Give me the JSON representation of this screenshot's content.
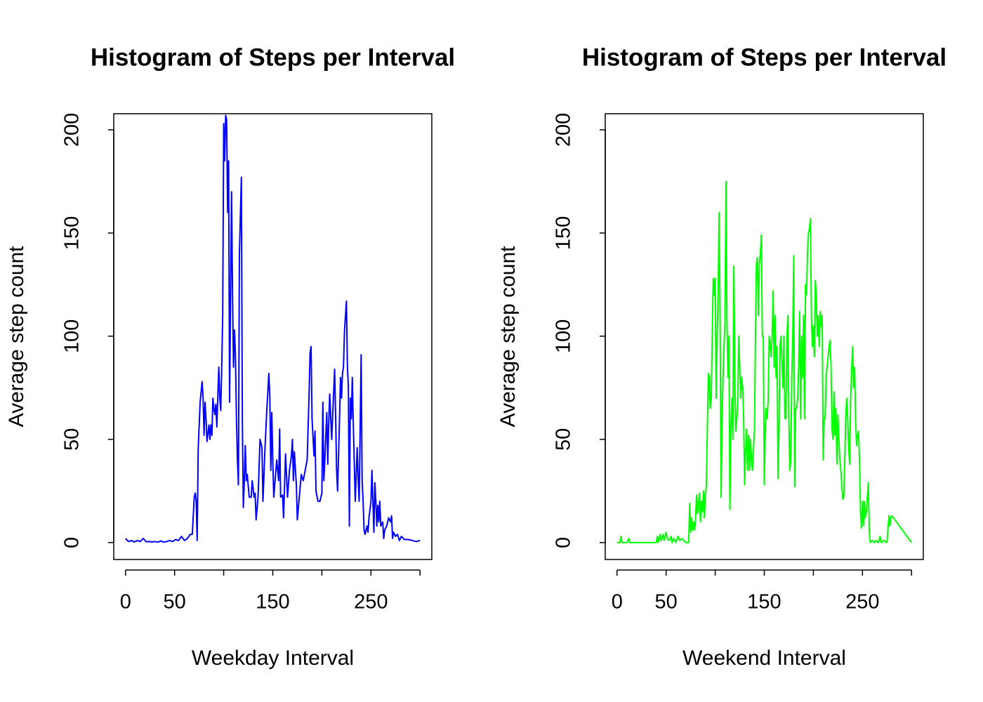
{
  "chart_data": [
    {
      "type": "line",
      "title": "Histogram of Steps per Interval",
      "xlabel": "Weekday Interval",
      "ylabel": "Average step count",
      "color": "#0000ff",
      "xlim": [
        -12,
        312
      ],
      "ylim": [
        -8.2,
        207.8
      ],
      "xticks": [
        0,
        50,
        {
          "value": 100,
          "label": null
        },
        150,
        {
          "value": 200,
          "label": null
        },
        250,
        {
          "value": 300,
          "label": null
        }
      ],
      "yticks": [
        0,
        50,
        100,
        150,
        200
      ],
      "x": [
        0,
        3,
        6,
        9,
        12,
        15,
        18,
        21,
        24,
        27,
        30,
        33,
        36,
        39,
        42,
        45,
        48,
        51,
        54,
        57,
        60,
        63,
        66,
        68,
        70,
        71,
        72,
        73,
        74,
        76,
        78,
        79,
        80,
        81,
        82,
        83,
        85,
        86,
        87,
        88,
        89,
        90,
        91,
        92,
        93,
        95,
        96,
        97,
        98,
        99,
        100,
        101,
        102,
        103,
        104,
        105,
        106,
        107,
        108,
        109,
        110,
        111,
        112,
        113,
        114,
        115,
        116,
        118,
        119,
        120,
        121,
        122,
        123,
        124,
        126,
        128,
        129,
        131,
        132,
        133,
        135,
        137,
        139,
        140,
        142,
        144,
        146,
        147,
        148,
        149,
        150,
        151,
        154,
        156,
        157,
        158,
        160,
        161,
        163,
        165,
        167,
        169,
        170,
        171,
        172,
        174,
        175,
        177,
        179,
        181,
        183,
        185,
        187,
        188,
        189,
        190,
        192,
        193,
        194,
        196,
        198,
        200,
        201,
        202,
        203,
        205,
        206,
        207,
        208,
        210,
        213,
        214,
        215,
        216,
        218,
        219,
        220,
        221,
        222,
        223,
        225,
        226,
        227,
        228,
        229,
        230,
        231,
        232,
        234,
        236,
        237,
        238,
        240,
        241,
        242,
        243,
        244,
        246,
        247,
        248,
        250,
        251,
        252,
        253,
        254,
        255,
        256,
        257,
        258,
        259,
        260,
        262,
        263,
        264,
        266,
        268,
        270,
        271,
        272,
        273,
        275,
        277,
        279,
        281,
        284,
        288,
        292,
        296,
        300
      ],
      "values": [
        2,
        0.5,
        1,
        0.3,
        1,
        0.5,
        2,
        0.4,
        0.5,
        0.3,
        0.5,
        0.2,
        0.8,
        0.2,
        0.5,
        1,
        0.5,
        1.5,
        1,
        3,
        1,
        2,
        4,
        4,
        22,
        24,
        20,
        1,
        45,
        68,
        78,
        70,
        52,
        68,
        60,
        49,
        57,
        50,
        57,
        52,
        70,
        65,
        62,
        67,
        56,
        85,
        70,
        64,
        85,
        110,
        203,
        185,
        207,
        205,
        160,
        185,
        68,
        120,
        170,
        120,
        85,
        103,
        90,
        60,
        40,
        28,
        140,
        177,
        60,
        17,
        30,
        47,
        30,
        33,
        22,
        22,
        30,
        22,
        24,
        11,
        22,
        50,
        46,
        20,
        45,
        65,
        82,
        70,
        35,
        63,
        40,
        22,
        40,
        30,
        55,
        22,
        23,
        12,
        43,
        22,
        35,
        42,
        50,
        30,
        44,
        28,
        11,
        22,
        33,
        30,
        35,
        40,
        72,
        92,
        95,
        60,
        42,
        54,
        25,
        20,
        20,
        24,
        68,
        30,
        40,
        63,
        38,
        58,
        72,
        50,
        84,
        62,
        35,
        25,
        60,
        80,
        70,
        82,
        85,
        102,
        117,
        86,
        75,
        8,
        70,
        60,
        80,
        58,
        20,
        46,
        30,
        20,
        91,
        30,
        20,
        6,
        4,
        8,
        5,
        12,
        20,
        35,
        20,
        5,
        29,
        20,
        8,
        18,
        10,
        20,
        8,
        10,
        2,
        6,
        8,
        12,
        10,
        13,
        2,
        5,
        3,
        4,
        1,
        3,
        1.5,
        1.5,
        1,
        0.5,
        1
      ]
    },
    {
      "type": "line",
      "title": "Histogram of Steps per Interval",
      "xlabel": "Weekend Interval",
      "ylabel": "Average step count",
      "color": "#00ff00",
      "xlim": [
        -12,
        312
      ],
      "ylim": [
        -8.2,
        207.8
      ],
      "xticks": [
        0,
        50,
        {
          "value": 100,
          "label": null
        },
        150,
        {
          "value": 200,
          "label": null
        },
        250,
        {
          "value": 300,
          "label": null
        }
      ],
      "yticks": [
        0,
        50,
        100,
        150,
        200
      ],
      "x": [
        0,
        3,
        4,
        5,
        10,
        12,
        13,
        20,
        30,
        40,
        41,
        42,
        44,
        45,
        47,
        48,
        50,
        51,
        53,
        55,
        56,
        58,
        60,
        62,
        64,
        66,
        68,
        70,
        73,
        74,
        75,
        76,
        77,
        78,
        79,
        80,
        81,
        82,
        84,
        85,
        86,
        87,
        88,
        89,
        90,
        91,
        92,
        93,
        94,
        95,
        96,
        97,
        98,
        99,
        100,
        101,
        102,
        103,
        104,
        105,
        106,
        107,
        108,
        109,
        110,
        111,
        112,
        113,
        114,
        115,
        116,
        117,
        118,
        119,
        120,
        121,
        122,
        123,
        124,
        125,
        126,
        127,
        128,
        129,
        130,
        131,
        132,
        133,
        134,
        135,
        136,
        137,
        138,
        139,
        140,
        141,
        142,
        143,
        144,
        145,
        146,
        147,
        148,
        149,
        150,
        151,
        152,
        153,
        154,
        155,
        156,
        157,
        158,
        159,
        160,
        161,
        162,
        163,
        164,
        165,
        166,
        167,
        168,
        169,
        170,
        171,
        172,
        173,
        174,
        175,
        176,
        177,
        178,
        179,
        180,
        181,
        182,
        183,
        184,
        185,
        186,
        187,
        188,
        189,
        190,
        191,
        192,
        193,
        194,
        195,
        196,
        197,
        198,
        199,
        200,
        201,
        202,
        203,
        204,
        205,
        206,
        207,
        208,
        209,
        210,
        211,
        212,
        213,
        214,
        215,
        216,
        217,
        218,
        219,
        220,
        221,
        222,
        223,
        224,
        225,
        226,
        227,
        228,
        229,
        230,
        231,
        232,
        233,
        234,
        235,
        236,
        237,
        238,
        239,
        240,
        241,
        242,
        243,
        244,
        245,
        246,
        247,
        248,
        249,
        250,
        251,
        252,
        253,
        254,
        255,
        256,
        257,
        258,
        260,
        262,
        264,
        266,
        268,
        269,
        272,
        275,
        277,
        278,
        279,
        280,
        300
      ],
      "values": [
        0,
        0,
        3,
        0,
        0,
        2,
        0,
        0,
        0,
        0,
        3,
        0,
        4,
        1,
        4,
        1,
        5,
        2,
        1,
        3,
        0,
        2,
        0,
        3,
        1,
        2,
        1,
        0,
        0,
        19,
        5,
        12,
        6,
        10,
        6,
        11,
        23,
        14,
        24,
        10,
        20,
        15,
        25,
        12,
        22,
        28,
        55,
        82,
        80,
        65,
        70,
        100,
        128,
        120,
        128,
        70,
        100,
        120,
        160,
        110,
        22,
        60,
        80,
        95,
        108,
        175,
        107,
        80,
        100,
        16,
        55,
        70,
        50,
        134,
        80,
        54,
        60,
        68,
        100,
        85,
        70,
        80,
        75,
        60,
        28,
        45,
        55,
        35,
        52,
        35,
        50,
        40,
        35,
        45,
        55,
        100,
        135,
        138,
        110,
        135,
        140,
        149,
        100,
        100,
        28,
        55,
        65,
        60,
        70,
        100,
        95,
        90,
        100,
        122,
        85,
        110,
        80,
        95,
        31,
        55,
        95,
        100,
        88,
        75,
        100,
        60,
        60,
        98,
        110,
        60,
        35,
        40,
        80,
        100,
        139,
        27,
        65,
        65,
        70,
        85,
        112,
        60,
        100,
        80,
        110,
        60,
        125,
        120,
        140,
        150,
        152,
        157,
        110,
        95,
        105,
        90,
        127,
        120,
        100,
        110,
        95,
        112,
        105,
        110,
        40,
        60,
        60,
        80,
        85,
        90,
        95,
        98,
        85,
        55,
        50,
        73,
        52,
        65,
        38,
        62,
        50,
        40,
        35,
        27,
        21,
        22,
        40,
        62,
        70,
        60,
        45,
        38,
        70,
        84,
        95,
        75,
        85,
        60,
        47,
        52,
        54,
        40,
        15,
        7,
        20,
        8,
        20,
        12,
        15,
        22,
        29,
        5,
        0,
        1,
        0,
        1,
        0,
        3,
        0,
        1,
        0,
        13,
        8,
        12,
        13,
        0
      ]
    }
  ]
}
